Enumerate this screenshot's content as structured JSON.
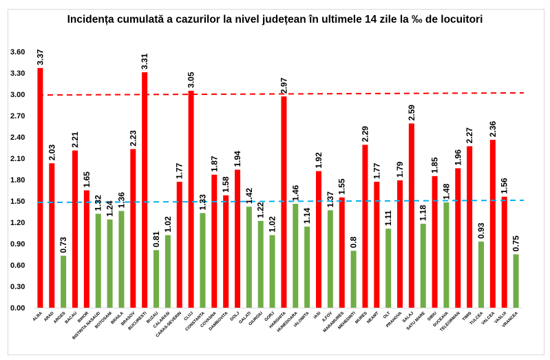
{
  "chart_data": {
    "type": "bar",
    "title": "Incidența cumulată a cazurilor la nivel județean în ultimele 14 zile la ‰ de locuitori",
    "xlabel": "",
    "ylabel": "",
    "ylim": [
      0,
      3.6
    ],
    "yticks": [
      "0.00",
      "0.30",
      "0.60",
      "0.90",
      "1.20",
      "1.50",
      "1.80",
      "2.10",
      "2.40",
      "2.70",
      "3.00",
      "3.30",
      "3.60"
    ],
    "grid": false,
    "legend": "none",
    "categories": [
      "ALBA",
      "ARAD",
      "ARGES",
      "BACAU",
      "BIHOR",
      "BISTRITA NASAUD",
      "BOTOSANI",
      "BRAILA",
      "BRASOV",
      "BUCURESTI",
      "BUZAU",
      "CALARASI",
      "CARAS-SEVERIN",
      "CLUJ",
      "CONSTANTA",
      "COVASNA",
      "DAMBOVITA",
      "DOLJ",
      "GALATI",
      "GIURGIU",
      "GORJ",
      "HARGHITA",
      "HUNEDOARA",
      "IALOMITA",
      "IASI",
      "ILFOV",
      "MARAMURES",
      "MEHEDINTI",
      "MURES",
      "NEAMT",
      "OLT",
      "PRAHOVA",
      "SALAJ",
      "SATU MARE",
      "SIBIU",
      "SUCEAVA",
      "TELEORMAN",
      "TIMIS",
      "TULCEA",
      "VALCEA",
      "VASLUI",
      "VRANCEA"
    ],
    "values": [
      3.37,
      2.03,
      0.73,
      2.21,
      1.65,
      1.32,
      1.24,
      1.36,
      2.23,
      3.31,
      0.81,
      1.02,
      1.77,
      3.05,
      1.33,
      1.87,
      1.58,
      1.94,
      1.42,
      1.22,
      1.02,
      2.97,
      1.46,
      1.14,
      1.92,
      1.37,
      1.55,
      0.8,
      2.29,
      1.77,
      1.11,
      1.79,
      2.59,
      1.18,
      1.85,
      1.48,
      1.96,
      2.27,
      0.93,
      2.36,
      1.56,
      0.75
    ],
    "value_labels": [
      "3.37",
      "2.03",
      "0.73",
      "2.21",
      "1.65",
      "1.32",
      "1.24",
      "1.36",
      "2.23",
      "3.31",
      "0.81",
      "1.02",
      "1.77",
      "3.05",
      "1.33",
      "1.87",
      "1.58",
      "1.94",
      "1.42",
      "1.22",
      "1.02",
      "2.97",
      "1.46",
      "1.14",
      "1.92",
      "1.37",
      "1.55",
      "0.8",
      "2.29",
      "1.77",
      "1.11",
      "1.79",
      "2.59",
      "1.18",
      "1.85",
      "1.48",
      "1.96",
      "2.27",
      "0.93",
      "2.36",
      "1.56",
      "0.75"
    ],
    "threshold_lines": [
      {
        "name": "threshold-3",
        "value_start": 2.99,
        "value_end": 3.02,
        "color": "#ff0000",
        "style": "dashed"
      },
      {
        "name": "threshold-1.5",
        "value_start": 1.48,
        "value_end": 1.51,
        "color": "#00b0f0",
        "style": "dashed"
      }
    ],
    "colors": {
      "above_threshold": "#ff0000",
      "below_threshold": "#70ad47"
    },
    "color_rule": "red if value > 1.5 else green"
  }
}
